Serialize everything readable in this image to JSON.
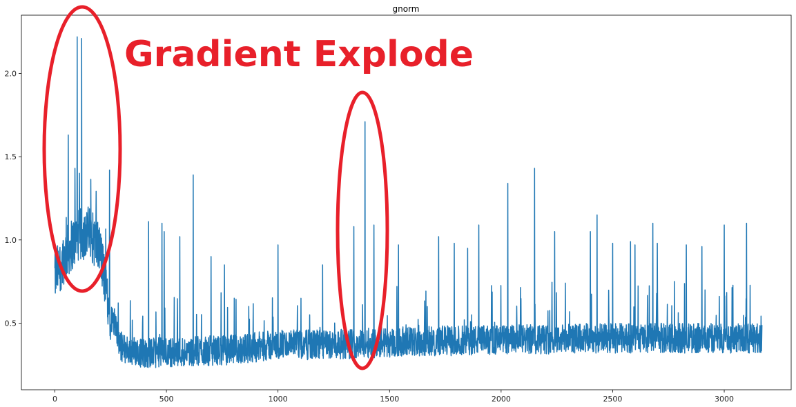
{
  "chart_data": {
    "type": "line",
    "title": "gnorm",
    "xlabel": "",
    "ylabel": "",
    "xlim": [
      -150,
      3300
    ],
    "ylim": [
      0.1,
      2.35
    ],
    "xticks": [
      0,
      500,
      1000,
      1500,
      2000,
      2500,
      3000
    ],
    "yticks": [
      0.5,
      1.0,
      1.5,
      2.0
    ],
    "xtick_labels": [
      "0",
      "500",
      "1000",
      "1500",
      "2000",
      "2500",
      "3000"
    ],
    "ytick_labels": [
      "0.5",
      "1.0",
      "1.5",
      "2.0"
    ],
    "grid": false,
    "legend": "none",
    "series": [
      {
        "color": "#1f77b4",
        "n_points": 3170,
        "envelope": {
          "x": [
            0,
            50,
            100,
            150,
            200,
            250,
            300,
            400,
            600,
            800,
            1000,
            1200,
            1400,
            1600,
            2000,
            2500,
            3000,
            3160
          ],
          "y": [
            0.78,
            0.92,
            1.02,
            1.05,
            0.95,
            0.55,
            0.35,
            0.32,
            0.33,
            0.34,
            0.37,
            0.37,
            0.38,
            0.39,
            0.4,
            0.41,
            0.41,
            0.41
          ]
        },
        "spikes": {
          "x": [
            60,
            90,
            100,
            110,
            120,
            245,
            420,
            480,
            490,
            560,
            620,
            700,
            760,
            1000,
            1200,
            1340,
            1390,
            1430,
            1540,
            1720,
            1790,
            1850,
            1900,
            2030,
            2150,
            2240,
            2400,
            2430,
            2500,
            2580,
            2600,
            2680,
            2700,
            2830,
            2900,
            3000,
            3100
          ],
          "y": [
            1.63,
            1.43,
            2.22,
            1.4,
            2.21,
            1.42,
            1.11,
            1.1,
            1.05,
            1.02,
            1.39,
            0.9,
            0.85,
            0.97,
            0.85,
            1.08,
            1.71,
            1.09,
            0.97,
            1.02,
            0.98,
            0.95,
            1.09,
            1.34,
            1.43,
            1.05,
            1.05,
            1.15,
            0.98,
            0.99,
            0.97,
            1.1,
            0.98,
            0.97,
            0.96,
            1.09,
            1.1
          ]
        }
      }
    ]
  },
  "annotation": {
    "text": "Gradient Explode",
    "color": "#e8202a"
  }
}
